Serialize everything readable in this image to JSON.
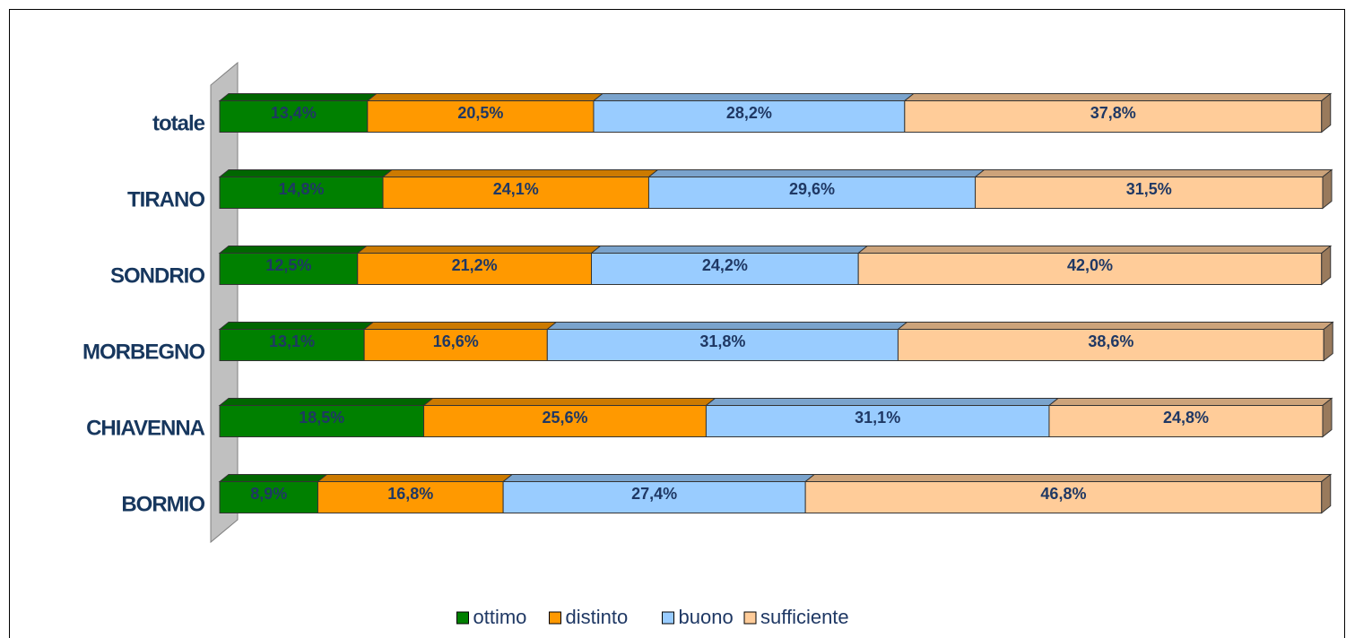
{
  "chart_data": {
    "type": "stacked-bar-horizontal",
    "categories": [
      "totale",
      "TIRANO",
      "SONDRIO",
      "MORBEGNO",
      "CHIAVENNA",
      "BORMIO"
    ],
    "xlim": [
      0,
      100
    ],
    "series": [
      {
        "name": "ottimo",
        "color": "#008000",
        "values": [
          13.4,
          14.8,
          12.5,
          13.1,
          18.5,
          8.9
        ],
        "value_labels": [
          "13,4%",
          "14,8%",
          "12,5%",
          "13,1%",
          "18,5%",
          "8,9%"
        ]
      },
      {
        "name": "distinto",
        "color": "#ff9900",
        "values": [
          20.5,
          24.1,
          21.2,
          16.6,
          25.6,
          16.8
        ],
        "value_labels": [
          "20,5%",
          "24,1%",
          "21,2%",
          "16,6%",
          "25,6%",
          "16,8%"
        ]
      },
      {
        "name": "buono",
        "color": "#99ccff",
        "values": [
          28.2,
          29.6,
          24.2,
          31.8,
          31.1,
          27.4
        ],
        "value_labels": [
          "28,2%",
          "29,6%",
          "24,2%",
          "31,8%",
          "31,1%",
          "27,4%"
        ]
      },
      {
        "name": "sufficiente",
        "color": "#ffcc99",
        "values": [
          37.8,
          31.5,
          42.0,
          38.6,
          24.8,
          46.8
        ],
        "value_labels": [
          "37,8%",
          "31,5%",
          "42,0%",
          "38,6%",
          "24,8%",
          "46,8%"
        ]
      }
    ],
    "legend": "bottom"
  }
}
